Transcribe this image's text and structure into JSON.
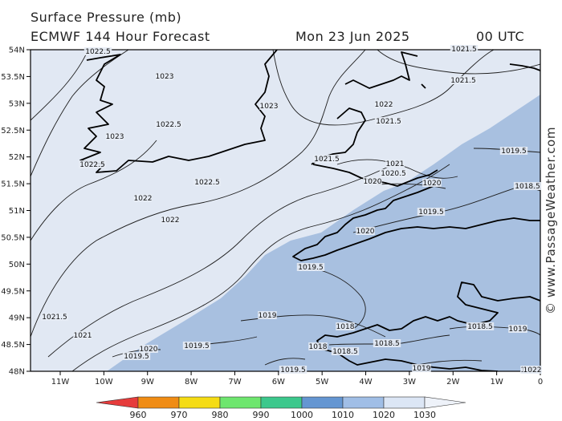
{
  "header": {
    "title": "Surface Pressure (mb)",
    "forecast": "ECMWF 144 Hour Forecast",
    "date": "Mon 23 Jun 2025",
    "time": "00 UTC"
  },
  "watermark": "© www.PassageWeather.com",
  "axes": {
    "lat_labels": [
      "54N",
      "53.5N",
      "53N",
      "52.5N",
      "52N",
      "51.5N",
      "51N",
      "50.5N",
      "50N",
      "49.5N",
      "49N",
      "48.5N",
      "48N"
    ],
    "lon_labels": [
      "11W",
      "10W",
      "9W",
      "8W",
      "7W",
      "6W",
      "5W",
      "4W",
      "3W",
      "2W",
      "1W",
      "0"
    ]
  },
  "isobar_labels": [
    {
      "text": "1022.5"
    },
    {
      "text": "1023"
    },
    {
      "text": "1023"
    },
    {
      "text": "1022.5"
    },
    {
      "text": "1023"
    },
    {
      "text": "1022.5"
    },
    {
      "text": "1022.5"
    },
    {
      "text": "1022"
    },
    {
      "text": "1022"
    },
    {
      "text": "1022"
    },
    {
      "text": "1021.5"
    },
    {
      "text": "1021.5"
    },
    {
      "text": "1021.5"
    },
    {
      "text": "1021"
    },
    {
      "text": "1020.5"
    },
    {
      "text": "1020"
    },
    {
      "text": "1020"
    },
    {
      "text": "1019.5"
    },
    {
      "text": "1019.5"
    },
    {
      "text": "1018.5"
    },
    {
      "text": "1020"
    },
    {
      "text": "1019.5"
    },
    {
      "text": "1021.5"
    },
    {
      "text": "1021"
    },
    {
      "text": "1020"
    },
    {
      "text": "1019.5"
    },
    {
      "text": "1019.5"
    },
    {
      "text": "1019"
    },
    {
      "text": "1018"
    },
    {
      "text": "1018"
    },
    {
      "text": "1018.5"
    },
    {
      "text": "1018.5"
    },
    {
      "text": "1018.5"
    },
    {
      "text": "1019"
    },
    {
      "text": "1019"
    },
    {
      "text": "1018"
    },
    {
      "text": "1019.5"
    },
    {
      "text": "1021.5"
    },
    {
      "text": "1022"
    }
  ],
  "colorbar": {
    "labels": [
      "960",
      "970",
      "980",
      "990",
      "1000",
      "1010",
      "1020",
      "1030"
    ],
    "colors": [
      "#e63c3c",
      "#f08c14",
      "#f5dc14",
      "#6ee66e",
      "#3cc88c",
      "#6496d2",
      "#a0bee6",
      "#dce6f5"
    ]
  },
  "colors": {
    "land": "#e1e8f3",
    "sea": "#a8c0e0",
    "coast": "#000000",
    "isobar": "#1e1e1e"
  }
}
